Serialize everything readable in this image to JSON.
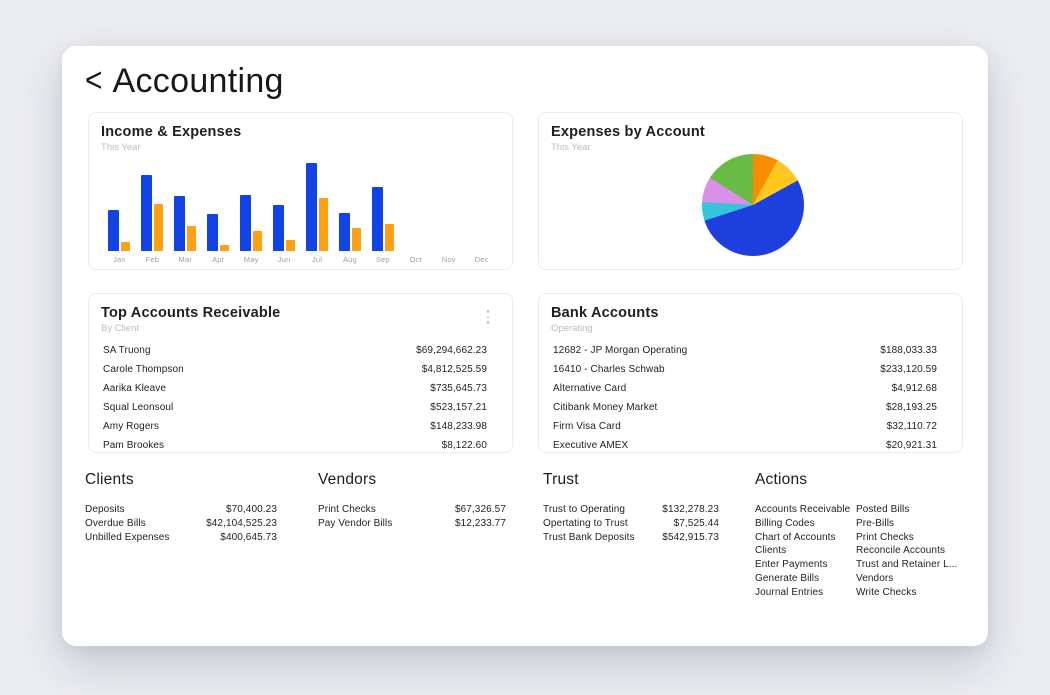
{
  "header": {
    "back_icon": "<",
    "title": "Accounting"
  },
  "cards": {
    "income_expenses": {
      "title": "Income & Expenses",
      "subtitle": "This Year"
    },
    "expenses_by_account": {
      "title": "Expenses by Account",
      "subtitle": "This Year"
    },
    "top_accounts_receivable": {
      "title": "Top Accounts Receivable",
      "subtitle": "By Client",
      "rows": [
        {
          "label": "SA Truong",
          "amount": "$69,294,662.23"
        },
        {
          "label": "Carole Thompson",
          "amount": "$4,812,525.59"
        },
        {
          "label": "Aarika Kleave",
          "amount": "$735,645.73"
        },
        {
          "label": "Squal Leonsoul",
          "amount": "$523,157.21"
        },
        {
          "label": "Amy Rogers",
          "amount": "$148,233.98"
        },
        {
          "label": "Pam Brookes",
          "amount": "$8,122.60"
        }
      ]
    },
    "bank_accounts": {
      "title": "Bank Accounts",
      "subtitle": "Operating",
      "rows": [
        {
          "label": "12682 - JP Morgan Operating",
          "amount": "$188,033.33"
        },
        {
          "label": "16410 - Charles Schwab",
          "amount": "$233,120.59"
        },
        {
          "label": "Alternative Card",
          "amount": "$4,912.68"
        },
        {
          "label": "Citibank Money Market",
          "amount": "$28,193.25"
        },
        {
          "label": "Firm Visa Card",
          "amount": "$32,110.72"
        },
        {
          "label": "Executive AMEX",
          "amount": "$20,921.31"
        }
      ]
    }
  },
  "sections": {
    "clients": {
      "title": "Clients",
      "rows": [
        {
          "label": "Deposits",
          "amount": "$70,400.23"
        },
        {
          "label": "Overdue Bills",
          "amount": "$42,104,525.23"
        },
        {
          "label": "Unbilled Expenses",
          "amount": "$400,645.73"
        }
      ]
    },
    "vendors": {
      "title": "Vendors",
      "rows": [
        {
          "label": "Print Checks",
          "amount": "$67,326.57"
        },
        {
          "label": "Pay Vendor Bills",
          "amount": "$12,233.77"
        }
      ]
    },
    "trust": {
      "title": "Trust",
      "rows": [
        {
          "label": "Trust to Operating",
          "amount": "$132,278.23"
        },
        {
          "label": "Opertating to Trust",
          "amount": "$7,525.44"
        },
        {
          "label": "Trust Bank Deposits",
          "amount": "$542,915.73"
        }
      ]
    },
    "actions": {
      "title": "Actions",
      "links_col1": [
        "Accounts Receivable",
        "Billing Codes",
        "Chart of Accounts",
        "Clients",
        "Enter Payments",
        "Generate Bills",
        "Journal Entries"
      ],
      "links_col2": [
        "Posted Bills",
        "Pre-Bills",
        "Print Checks",
        "Reconcile Accounts",
        "Trust and Retainer L...",
        "Vendors",
        "Write Checks"
      ]
    }
  },
  "chart_data": [
    {
      "type": "bar",
      "title": "Income & Expenses",
      "subtitle": "This Year",
      "categories": [
        "Jan",
        "Feb",
        "Mar",
        "Apr",
        "May",
        "Jun",
        "Jul",
        "Aug",
        "Sep",
        "Oct",
        "Nov",
        "Dec"
      ],
      "series": [
        {
          "name": "Income",
          "color": "#1243e6",
          "values": [
            47,
            86,
            62,
            42,
            64,
            52,
            100,
            43,
            73,
            0,
            0,
            0
          ]
        },
        {
          "name": "Expenses",
          "color": "#ffa011",
          "values": [
            10,
            53,
            28,
            7,
            23,
            13,
            60,
            26,
            31,
            0,
            0,
            0
          ]
        }
      ],
      "ylim": [
        0,
        100
      ],
      "units": "percent of max bar (no value axis shown)",
      "grid": false,
      "legend": "none",
      "tick_label_color": "#94a3a9"
    },
    {
      "type": "pie",
      "title": "Expenses by Account",
      "subtitle": "This Year",
      "start_angle_deg": 0,
      "direction": "clockwise",
      "legend": "none",
      "slices": [
        {
          "name": "slice-1",
          "color": "#fb8c00",
          "value_pct": 8
        },
        {
          "name": "slice-2",
          "color": "#fec81e",
          "value_pct": 9
        },
        {
          "name": "slice-3",
          "color": "#1d3fde",
          "value_pct": 53
        },
        {
          "name": "slice-4",
          "color": "#35c4dc",
          "value_pct": 6
        },
        {
          "name": "slice-5",
          "color": "#da90e9",
          "value_pct": 8
        },
        {
          "name": "slice-6",
          "color": "#68bb45",
          "value_pct": 16
        }
      ]
    }
  ],
  "colors": {
    "page_background": "#ecedf1",
    "panel_background": "#ffffff",
    "card_border": "#ececef",
    "text_primary": "#1d1f22",
    "text_subtitle": "#bcbcc0",
    "bar_income": "#1243e6",
    "bar_expense": "#ffa011"
  }
}
